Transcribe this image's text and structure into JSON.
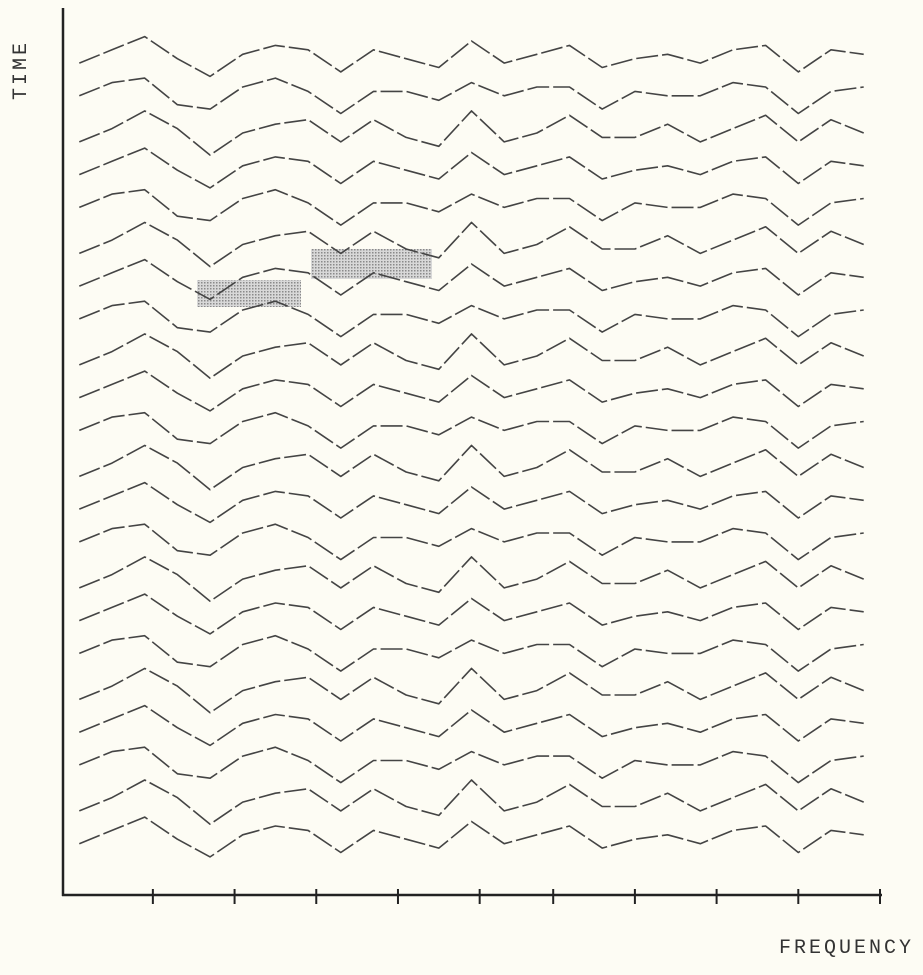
{
  "chart_data": {
    "type": "waterfall",
    "x_label": "FREQUENCY",
    "y_label": "TIME",
    "color": "#444444",
    "dashed": true,
    "xlim": [
      0,
      100
    ],
    "ylim": [
      0,
      100
    ],
    "xticks": [
      11,
      21,
      31,
      41,
      51,
      60,
      70,
      80,
      90,
      100
    ],
    "x": [
      2,
      6,
      10,
      14,
      18,
      22,
      26,
      30,
      34,
      38,
      42,
      46,
      50,
      54,
      58,
      62,
      66,
      70,
      74,
      78,
      82,
      86,
      90,
      94,
      98
    ],
    "series": [
      {
        "values": [
          94,
          95.5,
          97,
          94.5,
          92.5,
          95,
          96,
          95.5,
          93,
          95.5,
          94.5,
          93.5,
          96.5,
          94,
          95,
          96,
          93.5,
          94.5,
          95,
          94,
          95.5,
          96,
          93,
          95.5,
          95
        ]
      },
      {
        "values": [
          90.3,
          91.8,
          92.3,
          89.3,
          88.8,
          91.3,
          92.3,
          90.8,
          88.3,
          90.8,
          90.8,
          89.8,
          91.8,
          90.3,
          91.3,
          91.3,
          88.8,
          90.8,
          90.3,
          90.3,
          91.8,
          91.3,
          88.3,
          90.8,
          91.3
        ]
      },
      {
        "values": [
          85.1,
          86.6,
          88.6,
          86.6,
          83.6,
          86.1,
          87.1,
          87.6,
          85.1,
          87.6,
          85.6,
          84.6,
          88.6,
          85.1,
          86.1,
          88.1,
          85.6,
          85.6,
          87.1,
          85.1,
          86.6,
          88.1,
          85.1,
          87.6,
          86.1
        ]
      },
      {
        "values": [
          81.4,
          82.9,
          84.4,
          81.9,
          79.9,
          82.4,
          83.4,
          82.9,
          80.4,
          82.9,
          81.9,
          80.9,
          83.9,
          81.4,
          82.4,
          83.4,
          80.9,
          81.9,
          82.4,
          81.4,
          82.9,
          83.4,
          80.4,
          82.9,
          82.4
        ]
      },
      {
        "values": [
          77.7,
          79.2,
          79.7,
          76.7,
          76.2,
          78.7,
          79.7,
          78.2,
          75.7,
          78.2,
          78.2,
          77.2,
          79.2,
          77.7,
          78.7,
          78.7,
          76.2,
          78.2,
          77.7,
          77.7,
          79.2,
          78.7,
          75.7,
          78.2,
          78.7
        ]
      },
      {
        "values": [
          72.5,
          74,
          76,
          74,
          71,
          73.5,
          74.5,
          75,
          72.5,
          75,
          73,
          72,
          76,
          72.5,
          73.5,
          75.5,
          73,
          73,
          74.5,
          72.5,
          74,
          75.5,
          72.5,
          75,
          73.5
        ]
      },
      {
        "values": [
          68.8,
          70.3,
          71.8,
          69.3,
          67.3,
          69.8,
          70.8,
          70.3,
          67.8,
          70.3,
          69.3,
          68.3,
          71.3,
          68.8,
          69.8,
          70.8,
          68.3,
          69.3,
          69.8,
          68.8,
          70.3,
          70.8,
          67.8,
          70.3,
          69.8
        ]
      },
      {
        "values": [
          65.1,
          66.6,
          67.1,
          64.1,
          63.6,
          66.1,
          67.1,
          65.6,
          63.1,
          65.6,
          65.6,
          64.6,
          66.6,
          65.1,
          66.1,
          66.1,
          63.6,
          65.6,
          65.1,
          65.1,
          66.6,
          66.1,
          63.1,
          65.6,
          66.1
        ]
      },
      {
        "values": [
          59.9,
          61.4,
          63.4,
          61.4,
          58.4,
          60.9,
          61.9,
          62.4,
          59.9,
          62.4,
          60.4,
          59.4,
          63.4,
          59.9,
          60.9,
          62.9,
          60.4,
          60.4,
          61.9,
          59.9,
          61.4,
          62.9,
          59.9,
          62.4,
          60.9
        ]
      },
      {
        "values": [
          56.2,
          57.7,
          59.2,
          56.7,
          54.7,
          57.2,
          58.2,
          57.7,
          55.2,
          57.7,
          56.7,
          55.7,
          58.7,
          56.2,
          57.2,
          58.2,
          55.7,
          56.7,
          57.2,
          56.2,
          57.7,
          58.2,
          55.2,
          57.7,
          57.2
        ]
      },
      {
        "values": [
          52.5,
          54,
          54.5,
          51.5,
          51,
          53.5,
          54.5,
          53,
          50.5,
          53,
          53,
          52,
          54,
          52.5,
          53.5,
          53.5,
          51,
          53,
          52.5,
          52.5,
          54,
          53.5,
          50.5,
          53,
          53.5
        ]
      },
      {
        "values": [
          47.3,
          48.8,
          50.8,
          48.8,
          45.8,
          48.3,
          49.3,
          49.8,
          47.3,
          49.8,
          47.8,
          46.8,
          50.8,
          47.3,
          48.3,
          50.3,
          47.8,
          47.8,
          49.3,
          47.3,
          48.8,
          50.3,
          47.3,
          49.8,
          48.3
        ]
      },
      {
        "values": [
          43.6,
          45.1,
          46.6,
          44.1,
          42.1,
          44.6,
          45.6,
          45.1,
          42.6,
          45.1,
          44.1,
          43.1,
          46.1,
          43.6,
          44.6,
          45.6,
          43.1,
          44.1,
          44.6,
          43.6,
          45.1,
          45.6,
          42.6,
          45.1,
          44.6
        ]
      },
      {
        "values": [
          39.9,
          41.4,
          41.9,
          38.9,
          38.4,
          40.9,
          41.9,
          40.4,
          37.9,
          40.4,
          40.4,
          39.4,
          41.4,
          39.9,
          40.9,
          40.9,
          38.4,
          40.4,
          39.9,
          39.9,
          41.4,
          40.9,
          37.9,
          40.4,
          40.9
        ]
      },
      {
        "values": [
          34.7,
          36.2,
          38.2,
          36.2,
          33.2,
          35.7,
          36.7,
          37.2,
          34.7,
          37.2,
          35.2,
          34.2,
          38.2,
          34.7,
          35.7,
          37.7,
          35.2,
          35.2,
          36.7,
          34.7,
          36.2,
          37.7,
          34.7,
          37.2,
          35.7
        ]
      },
      {
        "values": [
          31,
          32.5,
          34,
          31.5,
          29.5,
          32,
          33,
          32.5,
          30,
          32.5,
          31.5,
          30.5,
          33.5,
          31,
          32,
          33,
          30.5,
          31.5,
          32,
          31,
          32.5,
          33,
          30,
          32.5,
          32
        ]
      },
      {
        "values": [
          27.3,
          28.8,
          29.3,
          26.3,
          25.8,
          28.3,
          29.3,
          27.8,
          25.3,
          27.8,
          27.8,
          26.8,
          28.8,
          27.3,
          28.3,
          28.3,
          25.8,
          27.8,
          27.3,
          27.3,
          28.8,
          28.3,
          25.3,
          27.8,
          28.3
        ]
      },
      {
        "values": [
          22.1,
          23.6,
          25.6,
          23.6,
          20.6,
          23.1,
          24.1,
          24.6,
          22.1,
          24.6,
          22.6,
          21.6,
          25.6,
          22.1,
          23.1,
          25.1,
          22.6,
          22.6,
          24.1,
          22.1,
          23.6,
          25.1,
          22.1,
          24.6,
          23.1
        ]
      },
      {
        "values": [
          18.4,
          19.9,
          21.4,
          18.9,
          16.9,
          19.4,
          20.4,
          19.9,
          17.4,
          19.9,
          18.9,
          17.9,
          20.9,
          18.4,
          19.4,
          20.4,
          17.9,
          18.9,
          19.4,
          18.4,
          19.9,
          20.4,
          17.4,
          19.9,
          19.4
        ]
      },
      {
        "values": [
          14.7,
          16.2,
          16.7,
          13.7,
          13.2,
          15.7,
          16.7,
          15.2,
          12.7,
          15.2,
          15.2,
          14.2,
          16.2,
          14.7,
          15.7,
          15.7,
          13.2,
          15.2,
          14.7,
          14.7,
          16.2,
          15.7,
          12.7,
          15.2,
          15.7
        ]
      },
      {
        "values": [
          9.5,
          11,
          13,
          11,
          8,
          10.5,
          11.5,
          12,
          9.5,
          12,
          10,
          9,
          13,
          9.5,
          10.5,
          12.5,
          10,
          10,
          11.5,
          9.5,
          11,
          12.5,
          9.5,
          12,
          10.5
        ]
      },
      {
        "values": [
          5.8,
          7.3,
          8.8,
          6.3,
          4.3,
          6.8,
          7.8,
          7.3,
          4.8,
          7.3,
          6.3,
          5.3,
          8.3,
          5.8,
          6.8,
          7.8,
          5.3,
          6.3,
          6.8,
          5.8,
          7.3,
          7.8,
          4.8,
          7.3,
          6.8
        ]
      }
    ]
  }
}
